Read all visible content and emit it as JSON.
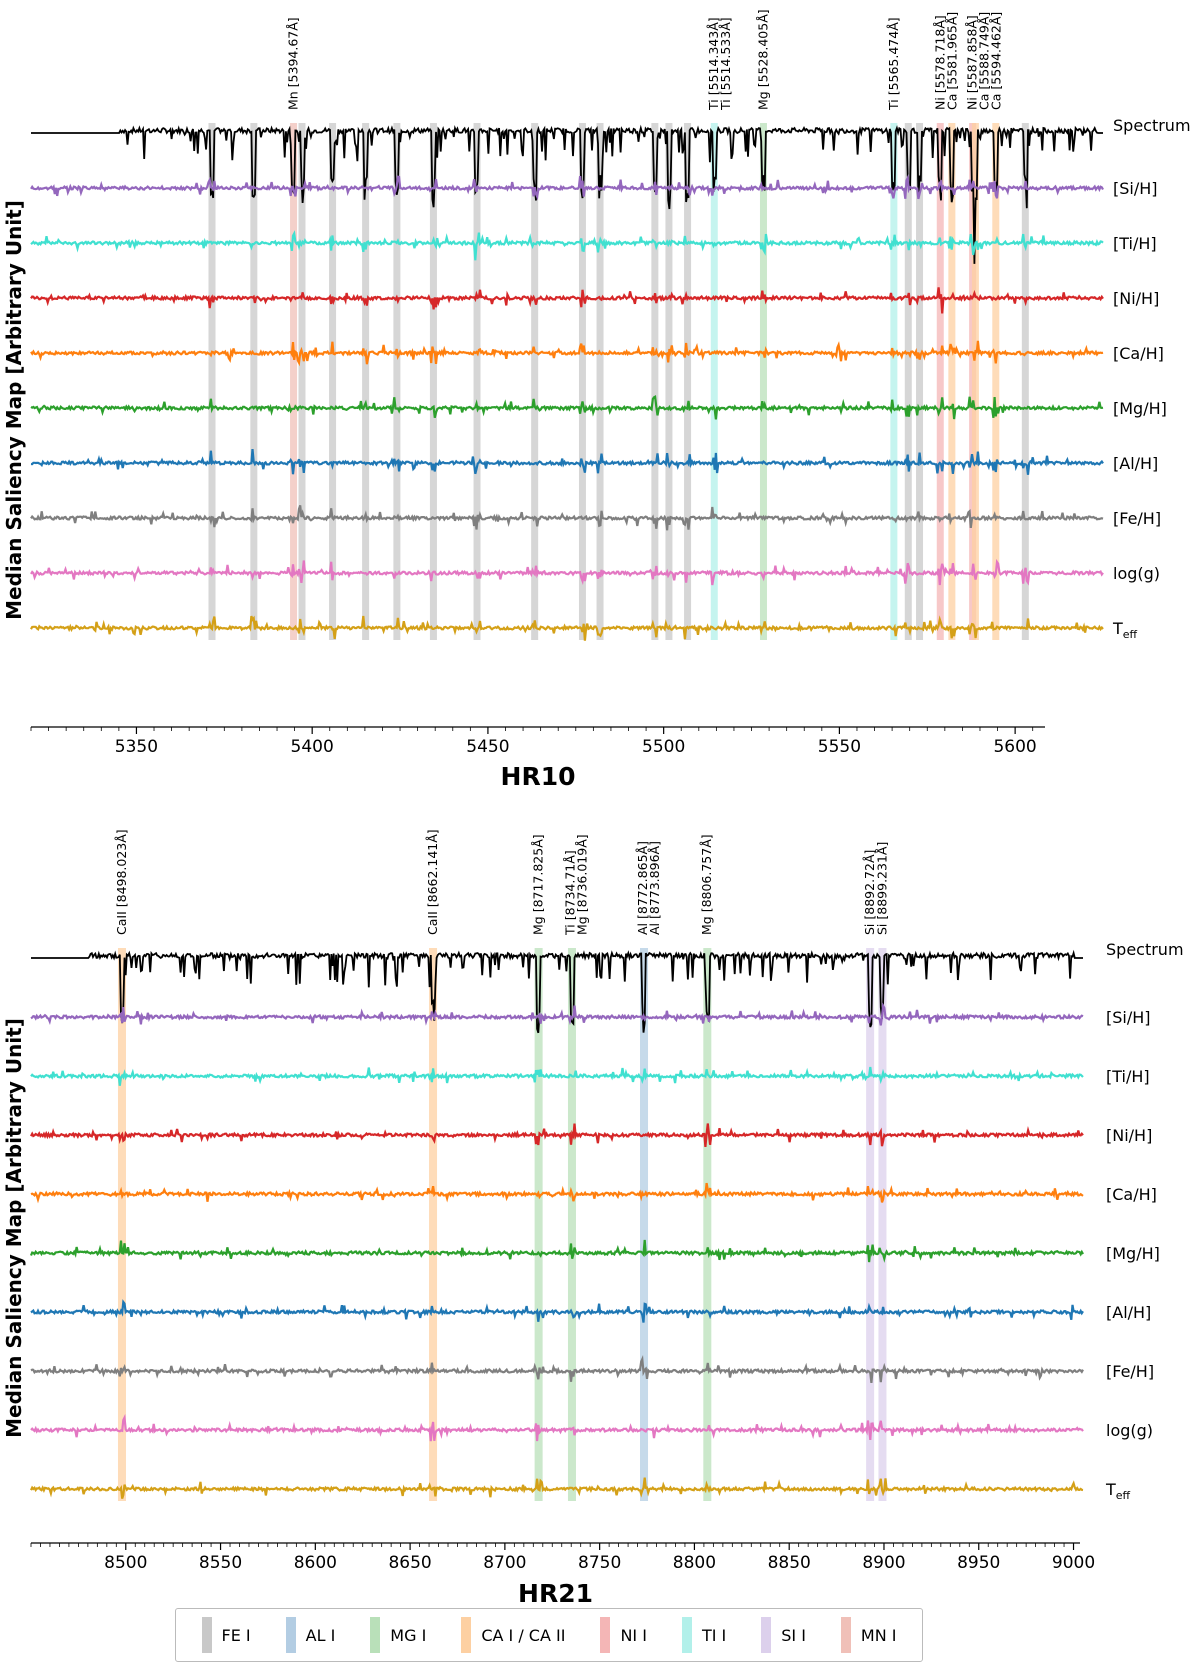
{
  "figure": {
    "ylabel": "Median Saliency Map [Arbitrary Unit]"
  },
  "legend": [
    {
      "label": "FE I",
      "color": "#c8c8c8"
    },
    {
      "label": "AL I",
      "color": "#b3cde3"
    },
    {
      "label": "MG I",
      "color": "#b9e0b9"
    },
    {
      "label": "CA I /  CA II",
      "color": "#fdd0a2"
    },
    {
      "label": "NI I",
      "color": "#f4b6b6"
    },
    {
      "label": "TI I",
      "color": "#b2f0ea"
    },
    {
      "label": "SI I",
      "color": "#dcd0ec"
    },
    {
      "label": "MN I",
      "color": "#f0c0b8"
    }
  ],
  "chart_data": [
    {
      "type": "line",
      "title": "HR10",
      "xlim": [
        5320,
        5625
      ],
      "xticks": [
        5350,
        5400,
        5450,
        5500,
        5550,
        5600
      ],
      "ylabel": "Median Saliency Map [Arbitrary Unit]",
      "series": [
        {
          "name": "Spectrum",
          "color": "#000000",
          "kind": "spectrum"
        },
        {
          "name": "[Si/H]",
          "color": "#9467bd"
        },
        {
          "name": "[Ti/H]",
          "color": "#40e0d0"
        },
        {
          "name": "[Ni/H]",
          "color": "#d62728"
        },
        {
          "name": "[Ca/H]",
          "color": "#ff7f0e"
        },
        {
          "name": "[Mg/H]",
          "color": "#2ca02c"
        },
        {
          "name": "[Al/H]",
          "color": "#1f77b4"
        },
        {
          "name": "[Fe/H]",
          "color": "#7f7f7f"
        },
        {
          "name": "log(g)",
          "color": "#e377c2"
        },
        {
          "name": "T",
          "sub": "eff",
          "color": "#d4a017"
        }
      ],
      "line_annotations": [
        {
          "label": "Mn [5394.67Å]",
          "x": 5394.67
        },
        {
          "label": "Ti [5514.343Å]",
          "x": 5514.343
        },
        {
          "label": "Ti [5514.533Å]",
          "x": 5514.533
        },
        {
          "label": "Mg [5528.405Å]",
          "x": 5528.405
        },
        {
          "label": "Ti [5565.474Å]",
          "x": 5565.474
        },
        {
          "label": "Ni [5578.718Å]",
          "x": 5578.718
        },
        {
          "label": "Ca [5581.965Å]",
          "x": 5581.965
        },
        {
          "label": "Ni [5587.858Å]",
          "x": 5587.858
        },
        {
          "label": "Ca [5588.749Å]",
          "x": 5588.749
        },
        {
          "label": "Ca [5594.462Å]",
          "x": 5594.462
        }
      ],
      "highlight_bands": [
        {
          "element": "FE I",
          "x": 5371.5
        },
        {
          "element": "FE I",
          "x": 5383.4
        },
        {
          "element": "MN I",
          "x": 5394.7
        },
        {
          "element": "FE I",
          "x": 5397.1
        },
        {
          "element": "FE I",
          "x": 5405.8
        },
        {
          "element": "FE I",
          "x": 5415.2
        },
        {
          "element": "FE I",
          "x": 5424.1
        },
        {
          "element": "FE I",
          "x": 5434.5
        },
        {
          "element": "FE I",
          "x": 5446.9
        },
        {
          "element": "FE I",
          "x": 5463.3
        },
        {
          "element": "FE I",
          "x": 5476.9
        },
        {
          "element": "FE I",
          "x": 5481.9
        },
        {
          "element": "FE I",
          "x": 5497.5
        },
        {
          "element": "FE I",
          "x": 5501.5
        },
        {
          "element": "FE I",
          "x": 5506.8
        },
        {
          "element": "TI I",
          "x": 5514.4
        },
        {
          "element": "MG I",
          "x": 5528.4
        },
        {
          "element": "TI I",
          "x": 5565.5
        },
        {
          "element": "FE I",
          "x": 5569.6
        },
        {
          "element": "FE I",
          "x": 5572.8
        },
        {
          "element": "NI I",
          "x": 5578.7
        },
        {
          "element": "CA I /  CA II",
          "x": 5582.0
        },
        {
          "element": "NI I",
          "x": 5587.9
        },
        {
          "element": "CA I /  CA II",
          "x": 5588.7
        },
        {
          "element": "CA I /  CA II",
          "x": 5594.5
        },
        {
          "element": "FE I",
          "x": 5602.9
        }
      ]
    },
    {
      "type": "line",
      "title": "HR21",
      "xlim": [
        8450,
        9005
      ],
      "xticks": [
        8500,
        8550,
        8600,
        8650,
        8700,
        8750,
        8800,
        8850,
        8900,
        8950,
        9000
      ],
      "ylabel": "Median Saliency Map [Arbitrary Unit]",
      "series": [
        {
          "name": "Spectrum",
          "color": "#000000",
          "kind": "spectrum"
        },
        {
          "name": "[Si/H]",
          "color": "#9467bd"
        },
        {
          "name": "[Ti/H]",
          "color": "#40e0d0"
        },
        {
          "name": "[Ni/H]",
          "color": "#d62728"
        },
        {
          "name": "[Ca/H]",
          "color": "#ff7f0e"
        },
        {
          "name": "[Mg/H]",
          "color": "#2ca02c"
        },
        {
          "name": "[Al/H]",
          "color": "#1f77b4"
        },
        {
          "name": "[Fe/H]",
          "color": "#7f7f7f"
        },
        {
          "name": "log(g)",
          "color": "#e377c2"
        },
        {
          "name": "T",
          "sub": "eff",
          "color": "#d4a017"
        }
      ],
      "line_annotations": [
        {
          "label": "CaII [8498.023Å]",
          "x": 8498.023
        },
        {
          "label": "CaII [8662.141Å]",
          "x": 8662.141
        },
        {
          "label": "Mg [8717.825Å]",
          "x": 8717.825
        },
        {
          "label": "Ti [8734.71Å]",
          "x": 8734.71
        },
        {
          "label": "Mg [8736.019Å]",
          "x": 8736.019
        },
        {
          "label": "Al [8772.865Å]",
          "x": 8772.865
        },
        {
          "label": "Al [8773.896Å]",
          "x": 8773.896
        },
        {
          "label": "Mg [8806.757Å]",
          "x": 8806.757
        },
        {
          "label": "Si [8892.72Å]",
          "x": 8892.72
        },
        {
          "label": "Si [8899.231Å]",
          "x": 8899.231
        }
      ],
      "highlight_bands": [
        {
          "element": "CA I /  CA II",
          "x": 8498.0
        },
        {
          "element": "CA I /  CA II",
          "x": 8662.1
        },
        {
          "element": "MG I",
          "x": 8717.8
        },
        {
          "element": "MG I",
          "x": 8735.4
        },
        {
          "element": "AL I",
          "x": 8773.4
        },
        {
          "element": "MG I",
          "x": 8806.8
        },
        {
          "element": "SI I",
          "x": 8892.7
        },
        {
          "element": "SI I",
          "x": 8899.2
        }
      ]
    }
  ]
}
